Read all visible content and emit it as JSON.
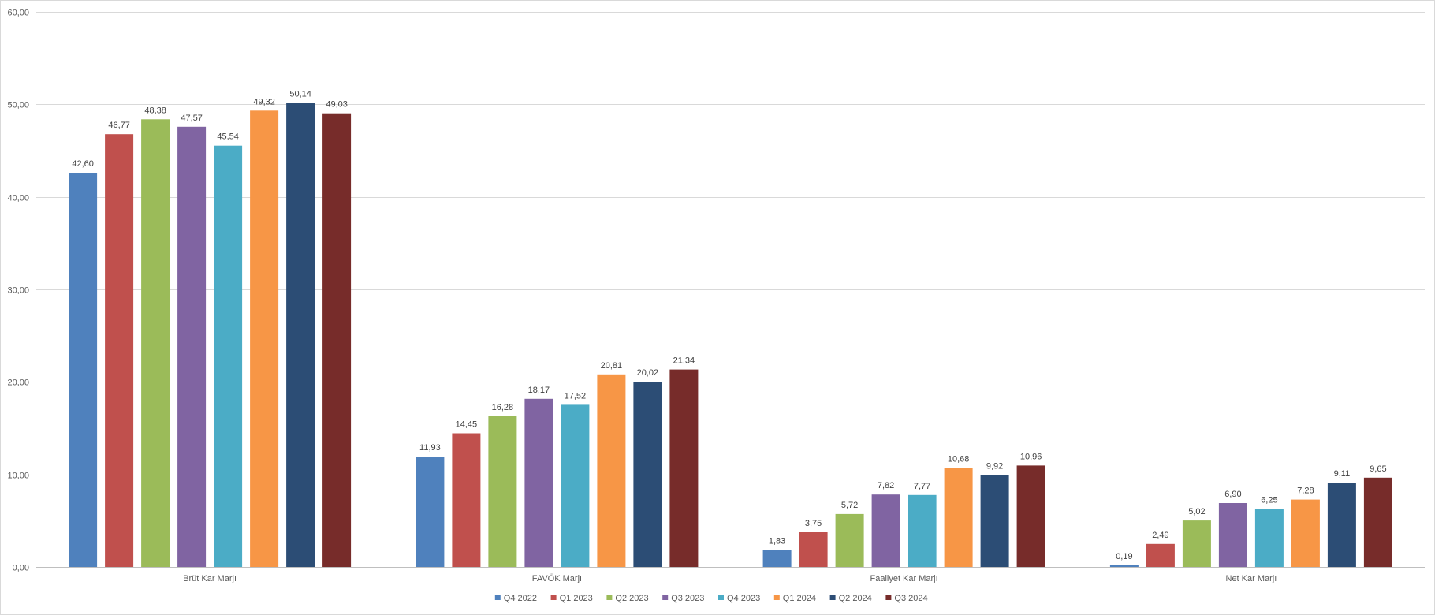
{
  "chart_data": {
    "type": "bar",
    "title": "",
    "xlabel": "",
    "ylabel": "",
    "ylim": [
      0,
      60
    ],
    "yticks": [
      "0,00",
      "10,00",
      "20,00",
      "30,00",
      "40,00",
      "50,00",
      "60,00"
    ],
    "grid": true,
    "legend_position": "bottom",
    "categories": [
      "Brüt Kar Marjı",
      "FAVÖK Marjı",
      "Faaliyet Kar Marjı",
      "Net Kar Marjı"
    ],
    "series": [
      {
        "name": "Q4 2022",
        "color": "#4F81BD",
        "values": [
          42.6,
          11.93,
          1.83,
          0.19
        ],
        "labels": [
          "42,60",
          "11,93",
          "1,83",
          "0,19"
        ]
      },
      {
        "name": "Q1 2023",
        "color": "#C0504D",
        "values": [
          46.77,
          14.45,
          3.75,
          2.49
        ],
        "labels": [
          "46,77",
          "14,45",
          "3,75",
          "2,49"
        ]
      },
      {
        "name": "Q2 2023",
        "color": "#9BBB59",
        "values": [
          48.38,
          16.28,
          5.72,
          5.02
        ],
        "labels": [
          "48,38",
          "16,28",
          "5,72",
          "5,02"
        ]
      },
      {
        "name": "Q3 2023",
        "color": "#8064A2",
        "values": [
          47.57,
          18.17,
          7.82,
          6.9
        ],
        "labels": [
          "47,57",
          "18,17",
          "7,82",
          "6,90"
        ]
      },
      {
        "name": "Q4 2023",
        "color": "#4BACC6",
        "values": [
          45.54,
          17.52,
          7.77,
          6.25
        ],
        "labels": [
          "45,54",
          "17,52",
          "7,77",
          "6,25"
        ]
      },
      {
        "name": "Q1 2024",
        "color": "#F79646",
        "values": [
          49.32,
          20.81,
          10.68,
          7.28
        ],
        "labels": [
          "49,32",
          "20,81",
          "10,68",
          "7,28"
        ]
      },
      {
        "name": "Q2 2024",
        "color": "#2C4D75",
        "values": [
          50.14,
          20.02,
          9.92,
          9.11
        ],
        "labels": [
          "50,14",
          "20,02",
          "9,92",
          "9,11"
        ]
      },
      {
        "name": "Q3 2024",
        "color": "#772C2A",
        "values": [
          49.03,
          21.34,
          10.96,
          9.65
        ],
        "labels": [
          "49,03",
          "21,34",
          "10,96",
          "9,65"
        ]
      }
    ]
  }
}
